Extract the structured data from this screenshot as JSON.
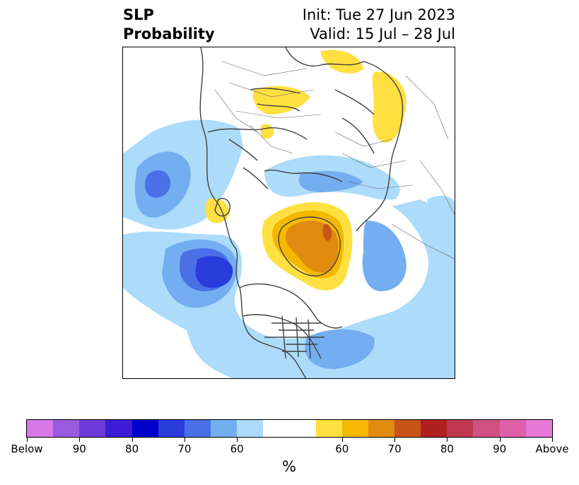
{
  "header": {
    "title_line1": "SLP",
    "title_line2": "Probability",
    "init_text": "Init: Tue 27 Jun 2023",
    "valid_text": "Valid: 15 Jul – 28 Jul"
  },
  "colorbar": {
    "colors": [
      "#d878e8",
      "#9a5ae0",
      "#6e3ad8",
      "#3c1cd4",
      "#0000cc",
      "#2a3cdc",
      "#4a70e8",
      "#74aef0",
      "#acdcfa",
      "#ffffff",
      "#ffffff",
      "#ffe040",
      "#f4b800",
      "#e08a10",
      "#c85418",
      "#b02020",
      "#c03850",
      "#d05080",
      "#de60a8",
      "#e878d8"
    ],
    "ticks": [
      "Below",
      "90",
      "80",
      "70",
      "60",
      "60",
      "70",
      "80",
      "90",
      "Above"
    ],
    "unit": "%"
  },
  "map": {
    "description_colors": {
      "below_60": "#acdcfa",
      "below_70": "#74aef0",
      "below_80": "#4a70e8",
      "below_90": "#2a3cdc",
      "above_60": "#ffe040",
      "above_70": "#f4b800",
      "above_80": "#e08a10",
      "above_90": "#c85418"
    }
  }
}
